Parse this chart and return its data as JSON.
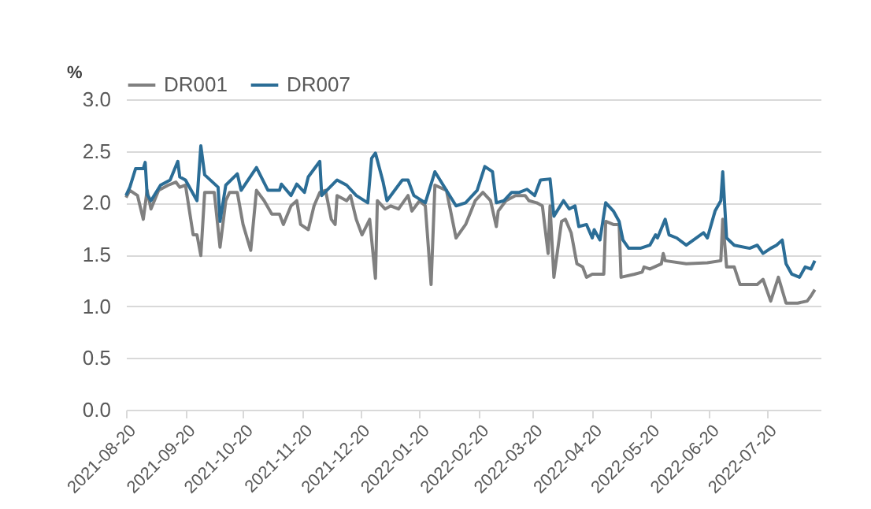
{
  "chart_data": {
    "type": "line",
    "ylabel": "%",
    "legend": "top",
    "grid": "y",
    "line_style": "solid",
    "marker": "none",
    "xlim": [
      "2021-08-20",
      "2022-08-17"
    ],
    "xticks": [
      "2021-08-20",
      "2021-09-20",
      "2021-10-20",
      "2021-11-20",
      "2021-12-20",
      "2022-01-20",
      "2022-02-20",
      "2022-03-20",
      "2022-04-20",
      "2022-05-20",
      "2022-06-20",
      "2022-07-20"
    ],
    "ylim": [
      0,
      3
    ],
    "yticks": [
      {
        "value": 0,
        "label": "0.0"
      },
      {
        "value": 0.5,
        "label": "0.5"
      },
      {
        "value": 1,
        "label": "1.0"
      },
      {
        "value": 1.5,
        "label": "1.5"
      },
      {
        "value": 2,
        "label": "2.0"
      },
      {
        "value": 2.5,
        "label": "2.5"
      },
      {
        "value": 3,
        "label": "3.0"
      }
    ],
    "series": [
      {
        "name": "DR001",
        "color": "#808080",
        "x": [
          "2021-08-20",
          "2021-08-22",
          "2021-08-26",
          "2021-08-29",
          "2021-08-31",
          "2021-09-02",
          "2021-09-06",
          "2021-09-11",
          "2021-09-15",
          "2021-09-17",
          "2021-09-20",
          "2021-09-24",
          "2021-09-26",
          "2021-09-28",
          "2021-09-30",
          "2021-10-05",
          "2021-10-08",
          "2021-10-11",
          "2021-10-13",
          "2021-10-17",
          "2021-10-20",
          "2021-10-24",
          "2021-10-27",
          "2021-10-31",
          "2021-11-04",
          "2021-11-08",
          "2021-11-10",
          "2021-11-14",
          "2021-11-17",
          "2021-11-19",
          "2021-11-23",
          "2021-11-26",
          "2021-11-29",
          "2021-12-02",
          "2021-12-05",
          "2021-12-07",
          "2021-12-08",
          "2021-12-13",
          "2021-12-15",
          "2021-12-18",
          "2021-12-21",
          "2021-12-25",
          "2021-12-28",
          "2021-12-29",
          "2022-01-02",
          "2022-01-05",
          "2022-01-09",
          "2022-01-14",
          "2022-01-16",
          "2022-01-20",
          "2022-01-23",
          "2022-01-26",
          "2022-01-28",
          "2022-02-03",
          "2022-02-08",
          "2022-02-13",
          "2022-02-18",
          "2022-02-22",
          "2022-02-26",
          "2022-03-01",
          "2022-03-02",
          "2022-03-06",
          "2022-03-11",
          "2022-03-16",
          "2022-03-18",
          "2022-03-22",
          "2022-03-25",
          "2022-03-28",
          "2022-03-29",
          "2022-03-31",
          "2022-04-04",
          "2022-04-06",
          "2022-04-09",
          "2022-04-12",
          "2022-04-15",
          "2022-04-17",
          "2022-04-20",
          "2022-04-26",
          "2022-04-27",
          "2022-05-01",
          "2022-05-04",
          "2022-05-05",
          "2022-05-12",
          "2022-05-16",
          "2022-05-17",
          "2022-05-20",
          "2022-05-26",
          "2022-05-27",
          "2022-05-28",
          "2022-06-08",
          "2022-06-19",
          "2022-06-26",
          "2022-06-27",
          "2022-06-29",
          "2022-07-03",
          "2022-07-06",
          "2022-07-11",
          "2022-07-15",
          "2022-07-18",
          "2022-07-22",
          "2022-07-26",
          "2022-07-30",
          "2022-08-05",
          "2022-08-10",
          "2022-08-12",
          "2022-08-14"
        ],
        "values": [
          2.05,
          2.12,
          2.07,
          1.84,
          2.12,
          1.94,
          2.12,
          2.17,
          2.2,
          2.15,
          2.17,
          1.69,
          1.69,
          1.49,
          2.1,
          2.1,
          1.57,
          2.02,
          2.1,
          2.1,
          1.79,
          1.54,
          2.12,
          2.02,
          1.89,
          1.89,
          1.79,
          1.97,
          2.02,
          1.79,
          1.74,
          1.97,
          2.1,
          2.12,
          1.84,
          1.79,
          2.07,
          2.02,
          2.07,
          1.84,
          1.69,
          1.84,
          1.27,
          2.02,
          1.94,
          1.97,
          1.94,
          2.07,
          1.92,
          2.02,
          1.97,
          1.21,
          2.17,
          2.12,
          1.66,
          1.79,
          2.02,
          2.1,
          2.02,
          1.77,
          1.92,
          2.02,
          2.07,
          2.07,
          2.02,
          2.0,
          1.97,
          1.51,
          1.97,
          1.28,
          1.82,
          1.84,
          1.71,
          1.41,
          1.38,
          1.28,
          1.31,
          1.31,
          1.82,
          1.79,
          1.79,
          1.28,
          1.31,
          1.33,
          1.38,
          1.36,
          1.41,
          1.51,
          1.44,
          1.41,
          1.42,
          1.44,
          1.84,
          1.38,
          1.38,
          1.21,
          1.21,
          1.21,
          1.26,
          1.05,
          1.28,
          1.03,
          1.03,
          1.05,
          1.1,
          1.16
        ]
      },
      {
        "name": "DR007",
        "color": "#2b6d96",
        "x": [
          "2021-08-20",
          "2021-08-22",
          "2021-08-25",
          "2021-08-29",
          "2021-08-30",
          "2021-08-31",
          "2021-09-02",
          "2021-09-07",
          "2021-09-12",
          "2021-09-16",
          "2021-09-17",
          "2021-09-20",
          "2021-09-26",
          "2021-09-28",
          "2021-09-30",
          "2021-10-07",
          "2021-10-08",
          "2021-10-11",
          "2021-10-17",
          "2021-10-19",
          "2021-10-27",
          "2021-11-02",
          "2021-11-08",
          "2021-11-09",
          "2021-11-14",
          "2021-11-17",
          "2021-11-21",
          "2021-11-23",
          "2021-11-29",
          "2021-11-30",
          "2021-12-08",
          "2021-12-13",
          "2021-12-18",
          "2021-12-24",
          "2021-12-26",
          "2021-12-28",
          "2022-01-01",
          "2022-01-03",
          "2022-01-11",
          "2022-01-14",
          "2022-01-17",
          "2022-01-23",
          "2022-01-28",
          "2022-02-08",
          "2022-02-13",
          "2022-02-19",
          "2022-02-23",
          "2022-02-27",
          "2022-03-01",
          "2022-03-05",
          "2022-03-09",
          "2022-03-13",
          "2022-03-17",
          "2022-03-21",
          "2022-03-24",
          "2022-03-29",
          "2022-03-31",
          "2022-04-05",
          "2022-04-08",
          "2022-04-11",
          "2022-04-13",
          "2022-04-17",
          "2022-04-20",
          "2022-04-21",
          "2022-04-24",
          "2022-04-27",
          "2022-05-01",
          "2022-05-04",
          "2022-05-06",
          "2022-05-09",
          "2022-05-15",
          "2022-05-20",
          "2022-05-23",
          "2022-05-24",
          "2022-05-28",
          "2022-05-30",
          "2022-06-03",
          "2022-06-08",
          "2022-06-17",
          "2022-06-19",
          "2022-06-23",
          "2022-06-26",
          "2022-06-27",
          "2022-06-29",
          "2022-07-03",
          "2022-07-11",
          "2022-07-15",
          "2022-07-18",
          "2022-07-22",
          "2022-07-25",
          "2022-07-28",
          "2022-07-30",
          "2022-08-02",
          "2022-08-06",
          "2022-08-09",
          "2022-08-12",
          "2022-08-14"
        ],
        "values": [
          2.07,
          2.15,
          2.33,
          2.33,
          2.39,
          2.08,
          2.02,
          2.17,
          2.22,
          2.4,
          2.25,
          2.22,
          2.02,
          2.55,
          2.27,
          2.15,
          1.82,
          2.17,
          2.28,
          2.12,
          2.34,
          2.12,
          2.12,
          2.18,
          2.07,
          2.18,
          2.1,
          2.25,
          2.4,
          2.07,
          2.22,
          2.17,
          2.07,
          2.0,
          2.43,
          2.48,
          2.2,
          2.02,
          2.22,
          2.22,
          2.07,
          2.0,
          2.3,
          1.97,
          2.0,
          2.12,
          2.35,
          2.3,
          2.0,
          2.02,
          2.1,
          2.1,
          2.13,
          2.07,
          2.22,
          2.23,
          1.87,
          2.02,
          1.94,
          1.97,
          1.77,
          1.79,
          1.66,
          1.74,
          1.64,
          2.0,
          1.92,
          1.82,
          1.64,
          1.56,
          1.56,
          1.59,
          1.69,
          1.66,
          1.84,
          1.69,
          1.66,
          1.59,
          1.71,
          1.66,
          1.92,
          2.02,
          2.3,
          1.66,
          1.59,
          1.56,
          1.59,
          1.51,
          1.56,
          1.59,
          1.64,
          1.41,
          1.31,
          1.28,
          1.38,
          1.36,
          1.44
        ]
      }
    ]
  }
}
